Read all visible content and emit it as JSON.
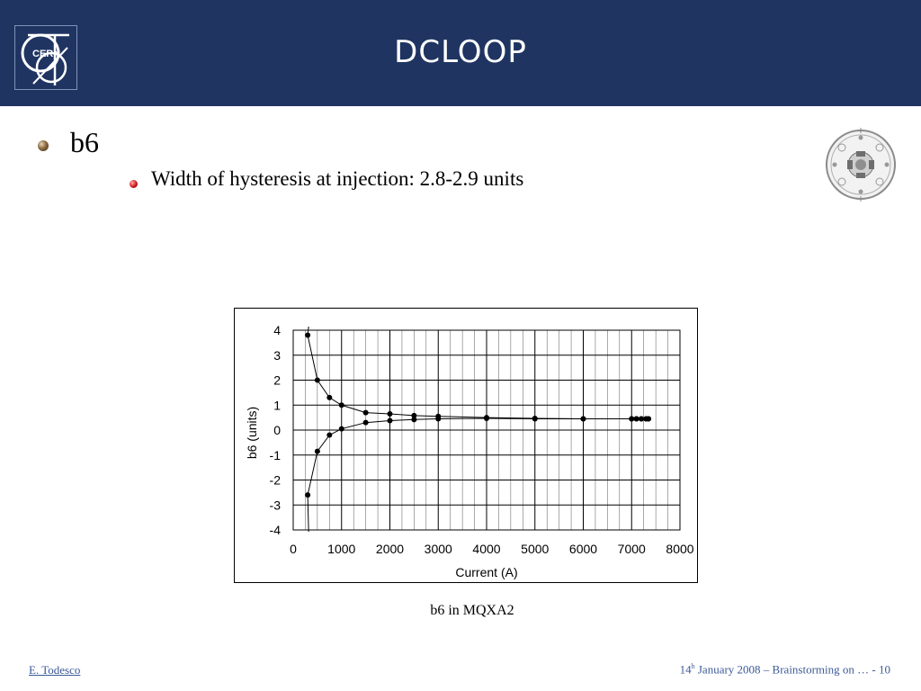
{
  "header": {
    "title": "DCLOOP",
    "logo_text": "CERN"
  },
  "bullets": {
    "level1": "b6",
    "level2": "Width of hysteresis at injection: 2.8-2.9 units"
  },
  "caption": "b6 in MQXA2",
  "footer": {
    "author": "E. Todesco",
    "date_day": "14",
    "date_sup": "h",
    "date_rest": " January 2008 – Brainstorming on  …  - 10"
  },
  "colors": {
    "header_bg": "#1f3461",
    "footer_text": "#3c5a98"
  },
  "chart_data": {
    "type": "line",
    "xlabel": "Current (A)",
    "ylabel": "b6 (units)",
    "xlim": [
      0,
      8000
    ],
    "ylim": [
      -4,
      4
    ],
    "xticks": [
      0,
      1000,
      2000,
      3000,
      4000,
      5000,
      6000,
      7000,
      8000
    ],
    "yticks": [
      4,
      3,
      2,
      1,
      0,
      -1,
      -2,
      -3,
      -4
    ],
    "grid": true,
    "series": [
      {
        "points": [
          [
            300,
            3.8
          ],
          [
            500,
            2.0
          ],
          [
            750,
            1.3
          ],
          [
            1000,
            1.0
          ],
          [
            1500,
            0.7
          ],
          [
            2000,
            0.65
          ],
          [
            2500,
            0.58
          ],
          [
            3000,
            0.55
          ],
          [
            4000,
            0.5
          ],
          [
            5000,
            0.47
          ],
          [
            6000,
            0.45
          ],
          [
            7000,
            0.45
          ],
          [
            7100,
            0.45
          ],
          [
            7200,
            0.45
          ],
          [
            7300,
            0.45
          ],
          [
            7350,
            0.45
          ]
        ]
      },
      {
        "points": [
          [
            300,
            -2.6
          ],
          [
            500,
            -0.85
          ],
          [
            750,
            -0.2
          ],
          [
            1000,
            0.05
          ],
          [
            1500,
            0.3
          ],
          [
            2000,
            0.38
          ],
          [
            2500,
            0.42
          ],
          [
            3000,
            0.45
          ],
          [
            4000,
            0.47
          ],
          [
            5000,
            0.45
          ],
          [
            6000,
            0.45
          ],
          [
            7000,
            0.45
          ],
          [
            7100,
            0.45
          ],
          [
            7200,
            0.45
          ],
          [
            7300,
            0.45
          ],
          [
            7350,
            0.45
          ]
        ]
      }
    ]
  }
}
